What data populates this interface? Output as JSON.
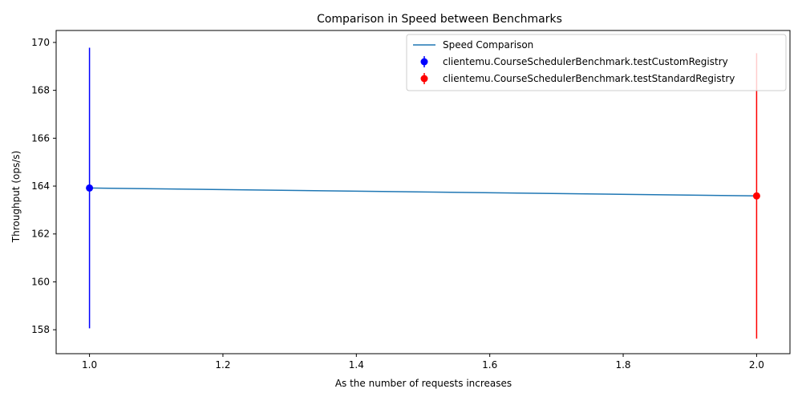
{
  "chart_data": {
    "type": "line",
    "title": "Comparison in Speed between Benchmarks",
    "xlabel": "As the number of requests increases",
    "ylabel": "Throughput (ops/s)",
    "xlim": [
      0.95,
      2.05
    ],
    "ylim": [
      157.0,
      170.5
    ],
    "x_ticks": [
      "1.0",
      "1.2",
      "1.4",
      "1.6",
      "1.8",
      "2.0"
    ],
    "y_ticks": [
      "158",
      "160",
      "162",
      "164",
      "166",
      "168",
      "170"
    ],
    "grid": false,
    "legend_position": "top-right",
    "line": {
      "name": "Speed Comparison",
      "color": "#1f77b4",
      "x": [
        1.0,
        2.0
      ],
      "y": [
        163.92,
        163.59
      ]
    },
    "series": [
      {
        "name": "clientemu.CourseSchedulerBenchmark.testCustomRegistry",
        "color": "#0000ff",
        "x": 1.0,
        "y": 163.92,
        "error_low": 158.06,
        "error_high": 169.78
      },
      {
        "name": "clientemu.CourseSchedulerBenchmark.testStandardRegistry",
        "color": "#ff0000",
        "x": 2.0,
        "y": 163.59,
        "error_low": 157.63,
        "error_high": 169.55
      }
    ]
  }
}
